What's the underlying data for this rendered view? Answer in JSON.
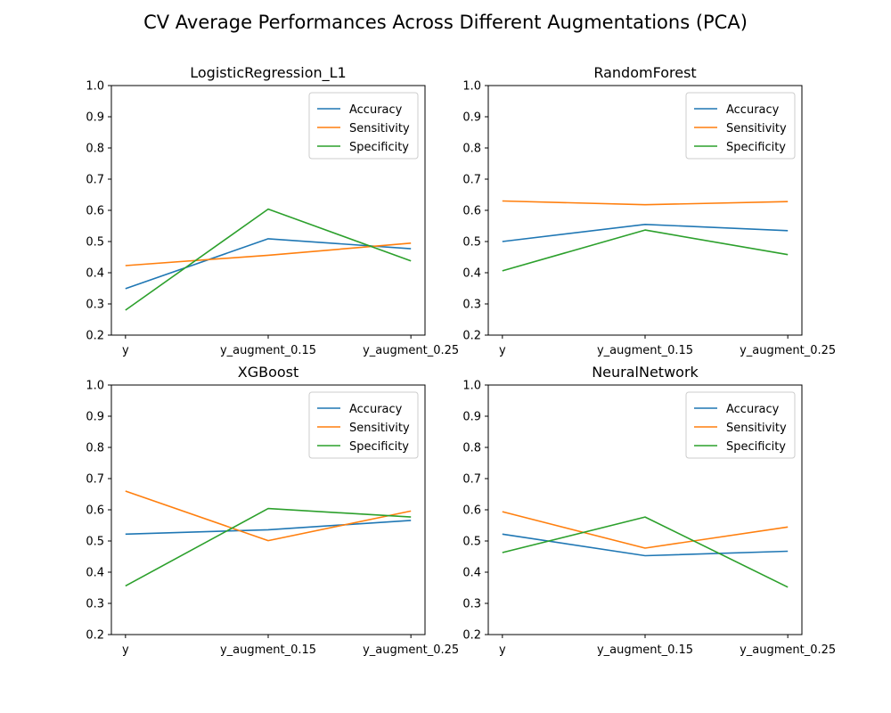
{
  "figure": {
    "suptitle": "CV Average Performances Across Different Augmentations (PCA)"
  },
  "colors": {
    "Accuracy": "#1f77b4",
    "Sensitivity": "#ff7f0e",
    "Specificity": "#2ca02c"
  },
  "chart_data": [
    {
      "type": "line",
      "title": "LogisticRegression_L1",
      "categories": [
        "y",
        "y_augment_0.15",
        "y_augment_0.25"
      ],
      "ylim": [
        0.2,
        1.0
      ],
      "yticks": [
        "0.2",
        "0.3",
        "0.4",
        "0.5",
        "0.6",
        "0.7",
        "0.8",
        "0.9",
        "1.0"
      ],
      "legend_position": "top-right",
      "grid": false,
      "series": [
        {
          "name": "Accuracy",
          "values": [
            0.349,
            0.509,
            0.477
          ]
        },
        {
          "name": "Sensitivity",
          "values": [
            0.423,
            0.456,
            0.495
          ]
        },
        {
          "name": "Specificity",
          "values": [
            0.28,
            0.604,
            0.438
          ]
        }
      ]
    },
    {
      "type": "line",
      "title": "RandomForest",
      "categories": [
        "y",
        "y_augment_0.15",
        "y_augment_0.25"
      ],
      "ylim": [
        0.2,
        1.0
      ],
      "yticks": [
        "0.2",
        "0.3",
        "0.4",
        "0.5",
        "0.6",
        "0.7",
        "0.8",
        "0.9",
        "1.0"
      ],
      "legend_position": "top-right",
      "grid": false,
      "series": [
        {
          "name": "Accuracy",
          "values": [
            0.5,
            0.555,
            0.535
          ]
        },
        {
          "name": "Sensitivity",
          "values": [
            0.63,
            0.618,
            0.628
          ]
        },
        {
          "name": "Specificity",
          "values": [
            0.406,
            0.537,
            0.458
          ]
        }
      ]
    },
    {
      "type": "line",
      "title": "XGBoost",
      "categories": [
        "y",
        "y_augment_0.15",
        "y_augment_0.25"
      ],
      "ylim": [
        0.2,
        1.0
      ],
      "yticks": [
        "0.2",
        "0.3",
        "0.4",
        "0.5",
        "0.6",
        "0.7",
        "0.8",
        "0.9",
        "1.0"
      ],
      "legend_position": "top-right",
      "grid": false,
      "series": [
        {
          "name": "Accuracy",
          "values": [
            0.522,
            0.536,
            0.566
          ]
        },
        {
          "name": "Sensitivity",
          "values": [
            0.66,
            0.501,
            0.596
          ]
        },
        {
          "name": "Specificity",
          "values": [
            0.356,
            0.604,
            0.577
          ]
        }
      ]
    },
    {
      "type": "line",
      "title": "NeuralNetwork",
      "categories": [
        "y",
        "y_augment_0.15",
        "y_augment_0.25"
      ],
      "ylim": [
        0.2,
        1.0
      ],
      "yticks": [
        "0.2",
        "0.3",
        "0.4",
        "0.5",
        "0.6",
        "0.7",
        "0.8",
        "0.9",
        "1.0"
      ],
      "legend_position": "top-right",
      "grid": false,
      "series": [
        {
          "name": "Accuracy",
          "values": [
            0.522,
            0.453,
            0.467
          ]
        },
        {
          "name": "Sensitivity",
          "values": [
            0.594,
            0.477,
            0.545
          ]
        },
        {
          "name": "Specificity",
          "values": [
            0.463,
            0.577,
            0.352
          ]
        }
      ]
    }
  ]
}
